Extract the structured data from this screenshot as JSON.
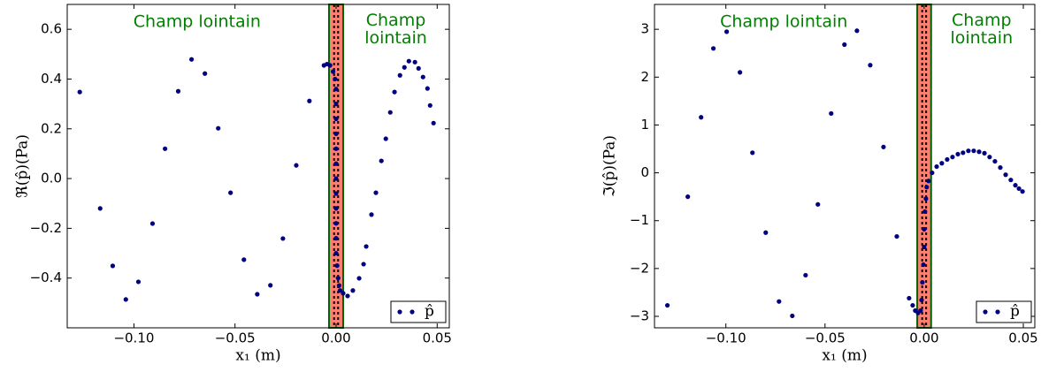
{
  "chart_data": [
    {
      "type": "scatter",
      "ylabel": "ℜ(p̂)(Pa)",
      "xlabel": "x₁ (m)",
      "annotations": [
        [
          "Champ lointain"
        ],
        [
          "Champ",
          "lointain"
        ]
      ],
      "annotation_color": "#008000",
      "xlim": [
        -0.133,
        0.056
      ],
      "ylim": [
        -0.6,
        0.7
      ],
      "xticks": [
        {
          "value": -0.1,
          "label": "−0.10"
        },
        {
          "value": -0.05,
          "label": "−0.05"
        },
        {
          "value": 0,
          "label": "0.00"
        },
        {
          "value": 0.05,
          "label": "0.05"
        }
      ],
      "yticks": [
        {
          "value": -0.4,
          "label": "−0.4"
        },
        {
          "value": -0.2,
          "label": "−0.2"
        },
        {
          "value": 0,
          "label": "0.0"
        },
        0.2,
        0.4,
        0.6
      ],
      "shaded_band": [
        -0.0035,
        0.0035
      ],
      "band_color": "#fa8072",
      "band_edge_color": "#006400",
      "dashed_lines": [
        -0.001,
        0.001
      ],
      "legend": "lower right",
      "x": [
        -0.1268,
        -0.1167,
        -0.1105,
        -0.104,
        -0.0978,
        -0.0908,
        -0.0846,
        -0.0781,
        -0.0715,
        -0.0649,
        -0.0583,
        -0.0522,
        -0.0456,
        -0.039,
        -0.0325,
        -0.0263,
        -0.0197,
        -0.0132,
        -0.006,
        -0.0045,
        -0.003,
        -0.0015,
        -0.0005,
        0,
        0,
        0,
        0,
        0,
        0,
        0,
        0,
        0,
        0,
        0,
        0,
        0.0005,
        0.001,
        0.0015,
        0.002,
        0.0035,
        0.0057,
        0.0083,
        0.0114,
        0.0136,
        0.0149,
        0.0175,
        0.0197,
        0.0224,
        0.0246,
        0.0268,
        0.0289,
        0.0316,
        0.0338,
        0.036,
        0.039,
        0.0408,
        0.043,
        0.0452,
        0.0465,
        0.0482
      ],
      "series": [
        {
          "name": "p̂",
          "color": "#000080",
          "values": [
            0.348,
            -0.12,
            -0.351,
            -0.486,
            -0.415,
            -0.181,
            0.12,
            0.351,
            0.479,
            0.422,
            0.202,
            -0.057,
            -0.326,
            -0.465,
            -0.429,
            -0.241,
            0.053,
            0.312,
            0.455,
            0.46,
            0.455,
            0.43,
            0.4,
            0.36,
            0.3,
            0.24,
            0.18,
            0.12,
            0.06,
            0,
            -0.06,
            -0.12,
            -0.18,
            -0.24,
            -0.3,
            -0.35,
            -0.4,
            -0.43,
            -0.45,
            -0.461,
            -0.472,
            -0.45,
            -0.401,
            -0.344,
            -0.273,
            -0.145,
            -0.057,
            0.071,
            0.16,
            0.266,
            0.348,
            0.415,
            0.447,
            0.472,
            0.468,
            0.443,
            0.408,
            0.362,
            0.294,
            0.223
          ]
        }
      ]
    },
    {
      "type": "scatter",
      "ylabel": "ℑ(p̂)(Pa)",
      "xlabel": "x₁ (m)",
      "annotations": [
        [
          "Champ lointain"
        ],
        [
          "Champ",
          "lointain"
        ]
      ],
      "annotation_color": "#008000",
      "xlim": [
        -0.136,
        0.0558
      ],
      "ylim": [
        -3.24,
        3.52
      ],
      "xticks": [
        {
          "value": -0.1,
          "label": "−0.10"
        },
        {
          "value": -0.05,
          "label": "−0.05"
        },
        {
          "value": 0,
          "label": "0.00"
        },
        {
          "value": 0.05,
          "label": "0.05"
        }
      ],
      "yticks": [
        {
          "value": -3,
          "label": "−3"
        },
        {
          "value": -2,
          "label": "−2"
        },
        {
          "value": -1,
          "label": "−1"
        },
        0,
        1,
        2,
        3
      ],
      "shaded_band": [
        -0.0035,
        0.0035
      ],
      "band_color": "#fa8072",
      "band_edge_color": "#006400",
      "dashed_lines": [
        -0.001,
        0.001
      ],
      "legend": "lower right",
      "x": [
        -0.1295,
        -0.1192,
        -0.1125,
        -0.1063,
        -0.0996,
        -0.0929,
        -0.0866,
        -0.0799,
        -0.0732,
        -0.0665,
        -0.0598,
        -0.0536,
        -0.0469,
        -0.0402,
        -0.0339,
        -0.0272,
        -0.0205,
        -0.0138,
        -0.0076,
        -0.0058,
        -0.0045,
        -0.0031,
        -0.0018,
        -0.0013,
        -0.0009,
        -0.0004,
        0,
        0,
        0.0004,
        0.0009,
        0.0013,
        0.0022,
        0.004,
        0.0063,
        0.0089,
        0.0116,
        0.0143,
        0.017,
        0.0196,
        0.0223,
        0.025,
        0.0277,
        0.0304,
        0.033,
        0.0357,
        0.0384,
        0.0411,
        0.0437,
        0.046,
        0.0478,
        0.0496
      ],
      "series": [
        {
          "name": "p̂",
          "color": "#000080",
          "values": [
            -2.77,
            -0.5,
            1.16,
            2.6,
            2.95,
            2.1,
            0.42,
            -1.25,
            -2.69,
            -2.99,
            -2.14,
            -0.66,
            1.24,
            2.68,
            2.97,
            2.25,
            0.54,
            -1.33,
            -2.62,
            -2.77,
            -2.88,
            -2.93,
            -2.88,
            -2.66,
            -2.29,
            -1.92,
            -1.55,
            -1.18,
            -0.81,
            -0.54,
            -0.3,
            -0.17,
            0,
            0.13,
            0.2,
            0.28,
            0.33,
            0.39,
            0.42,
            0.46,
            0.46,
            0.44,
            0.41,
            0.33,
            0.24,
            0.11,
            -0.04,
            -0.15,
            -0.26,
            -0.33,
            -0.39
          ]
        }
      ]
    }
  ]
}
